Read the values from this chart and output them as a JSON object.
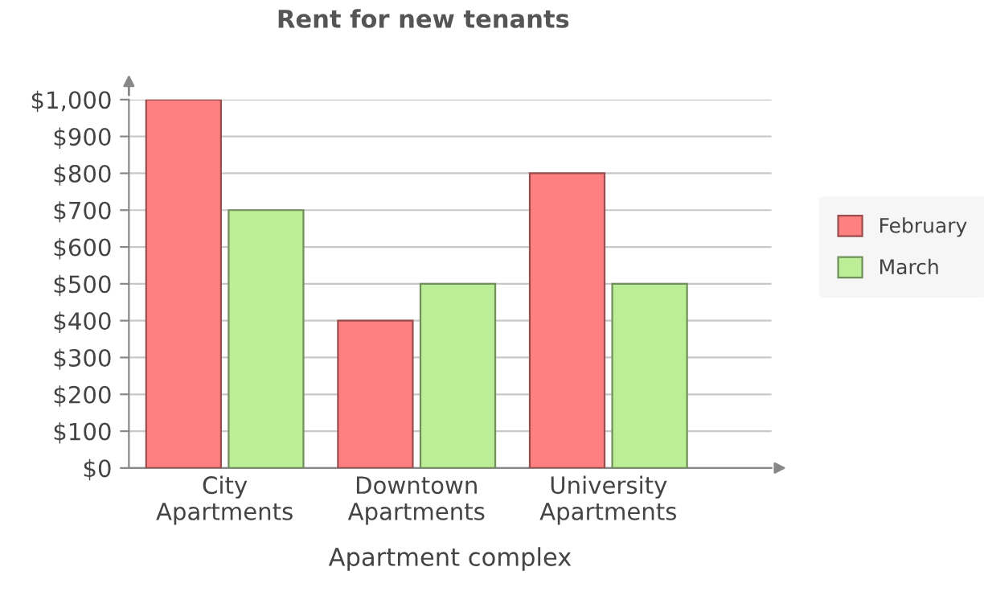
{
  "chart_data": {
    "type": "bar",
    "title": "Rent for new tenants",
    "xlabel": "Apartment complex",
    "categories": [
      "City\nApartments",
      "Downtown\nApartments",
      "University\nApartments"
    ],
    "series": [
      {
        "name": "February",
        "color": "#ff8080",
        "values": [
          1000,
          400,
          800
        ]
      },
      {
        "name": "March",
        "color": "#bbee96",
        "values": [
          700,
          500,
          500
        ]
      }
    ],
    "ylim": [
      0,
      1000
    ],
    "yticks": [
      {
        "value": 0,
        "label": "$0"
      },
      {
        "value": 100,
        "label": "$100"
      },
      {
        "value": 200,
        "label": "$200"
      },
      {
        "value": 300,
        "label": "$300"
      },
      {
        "value": 400,
        "label": "$400"
      },
      {
        "value": 500,
        "label": "$500"
      },
      {
        "value": 600,
        "label": "$600"
      },
      {
        "value": 700,
        "label": "$700"
      },
      {
        "value": 800,
        "label": "$800"
      },
      {
        "value": 900,
        "label": "$900"
      },
      {
        "value": 1000,
        "label": "$1,000"
      }
    ],
    "grid": "y",
    "legend": "right"
  }
}
